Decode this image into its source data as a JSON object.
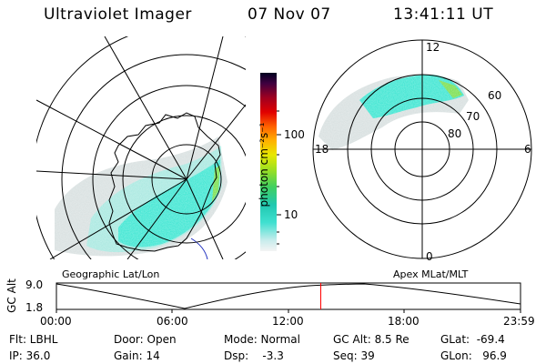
{
  "header": {
    "title": "Ultraviolet Imager",
    "date": "07 Nov 07",
    "time": "13:41:11 UT"
  },
  "colorbar": {
    "label": "photon cm⁻²s⁻¹",
    "ticks": [
      "100",
      "10"
    ]
  },
  "left_panel": {
    "title": "Geographic Lat/Lon"
  },
  "right_panel": {
    "title": "Apex MLat/MLT",
    "mlt_labels": {
      "top": "12",
      "left": "18",
      "right": "6",
      "bottom": "0"
    },
    "lat_labels": [
      "60",
      "70",
      "80"
    ]
  },
  "timeline": {
    "ylabel": "GC Alt",
    "yticks": [
      "9.0",
      "1.8"
    ],
    "xticks": [
      "00:00",
      "06:00",
      "12:00",
      "18:00",
      "23:59"
    ],
    "current_fraction": 0.5696
  },
  "status": {
    "flt": "Flt: LBHL",
    "ip": "IP: 36.0",
    "door": "Door: Open",
    "gain": "Gain: 14",
    "mode": "Mode: Normal",
    "dsp": "Dsp:    -3.3",
    "gcalt": "GC Alt: 8.5 Re",
    "seq": "Seq: 39",
    "glat": "GLat:  -69.4",
    "glon": "GLon:   96.9"
  },
  "colors": {
    "aurora_cyan": "#3ee6d2",
    "aurora_light": "#a8e8e0",
    "aurora_grey": "#d8e0e0",
    "aurora_green": "#7adf50",
    "marker_red": "#ff0000",
    "coast_blue": "#2030c0"
  }
}
